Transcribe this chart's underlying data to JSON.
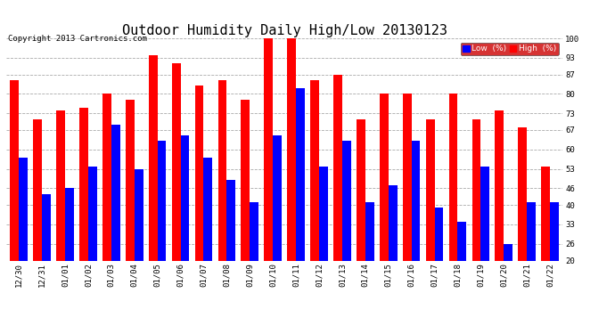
{
  "title": "Outdoor Humidity Daily High/Low 20130123",
  "copyright": "Copyright 2013 Cartronics.com",
  "categories": [
    "12/30",
    "12/31",
    "01/01",
    "01/02",
    "01/03",
    "01/04",
    "01/05",
    "01/06",
    "01/07",
    "01/08",
    "01/09",
    "01/10",
    "01/11",
    "01/12",
    "01/13",
    "01/14",
    "01/15",
    "01/16",
    "01/17",
    "01/18",
    "01/19",
    "01/20",
    "01/21",
    "01/22"
  ],
  "high": [
    85,
    71,
    74,
    75,
    80,
    78,
    94,
    91,
    83,
    85,
    78,
    100,
    100,
    85,
    87,
    71,
    80,
    80,
    71,
    80,
    71,
    74,
    68,
    54
  ],
  "low": [
    57,
    44,
    46,
    54,
    69,
    53,
    63,
    65,
    57,
    49,
    41,
    65,
    82,
    54,
    63,
    41,
    47,
    63,
    39,
    34,
    54,
    26,
    41,
    41
  ],
  "high_color": "#ff0000",
  "low_color": "#0000ff",
  "bg_color": "#ffffff",
  "plot_bg_color": "#ffffff",
  "grid_color": "#aaaaaa",
  "ymin": 20,
  "ymax": 100,
  "yticks": [
    20,
    26,
    33,
    40,
    46,
    53,
    60,
    67,
    73,
    80,
    87,
    93,
    100
  ],
  "legend_low_label": "Low  (%)",
  "legend_high_label": "High  (%)",
  "title_fontsize": 11,
  "copyright_fontsize": 6.5,
  "tick_fontsize": 6.5,
  "bar_width": 0.38
}
